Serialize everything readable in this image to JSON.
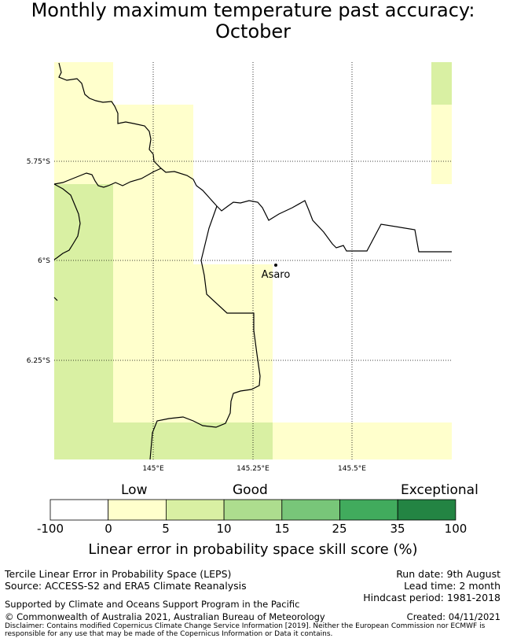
{
  "title_line1": "Monthly maximum temperature past accuracy:",
  "title_line2": "October",
  "map": {
    "lat_labels": [
      "5.75°S",
      "6°S",
      "6.25°S"
    ],
    "lon_labels": [
      "145°E",
      "145.25°E",
      "145.5°E"
    ],
    "place": "Asaro",
    "colors": {
      "skill_0_5": "#ffffcc",
      "skill_5_10": "#d9f0a3",
      "coastline": "#000000"
    }
  },
  "colorbar": {
    "category_labels": [
      "Low",
      "Good",
      "Exceptional"
    ],
    "ticks": [
      "-100",
      "0",
      "5",
      "10",
      "15",
      "25",
      "35",
      "100"
    ],
    "colors": [
      "#ffffff",
      "#ffffcc",
      "#d9f0a3",
      "#addd8e",
      "#78c679",
      "#41ab5d",
      "#238443"
    ],
    "label": "Linear error in probability space skill score (%)"
  },
  "footer": {
    "method": "Tercile Linear Error in Probability Space (LEPS)",
    "source": "Source: ACCESS-S2 and ERA5 Climate Reanalysis",
    "run_date": "Run date: 9th August",
    "lead_time": "Lead time: 2 month",
    "hindcast": "Hindcast period: 1981-2018",
    "support": "Supported by Climate and Oceans Support Program in the Pacific",
    "copyright": "© Commonwealth of Australia 2021, Australian Bureau of Meteorology",
    "created": "Created: 04/11/2021",
    "disclaimer_line1": "Disclaimer: Contains modified Copernicus Climate Change Service Information [2019]. Neither the European Commission nor ECMWF is",
    "disclaimer_line2": "responsible for any use that may be made of the Copernicus Information or Data it contains."
  }
}
